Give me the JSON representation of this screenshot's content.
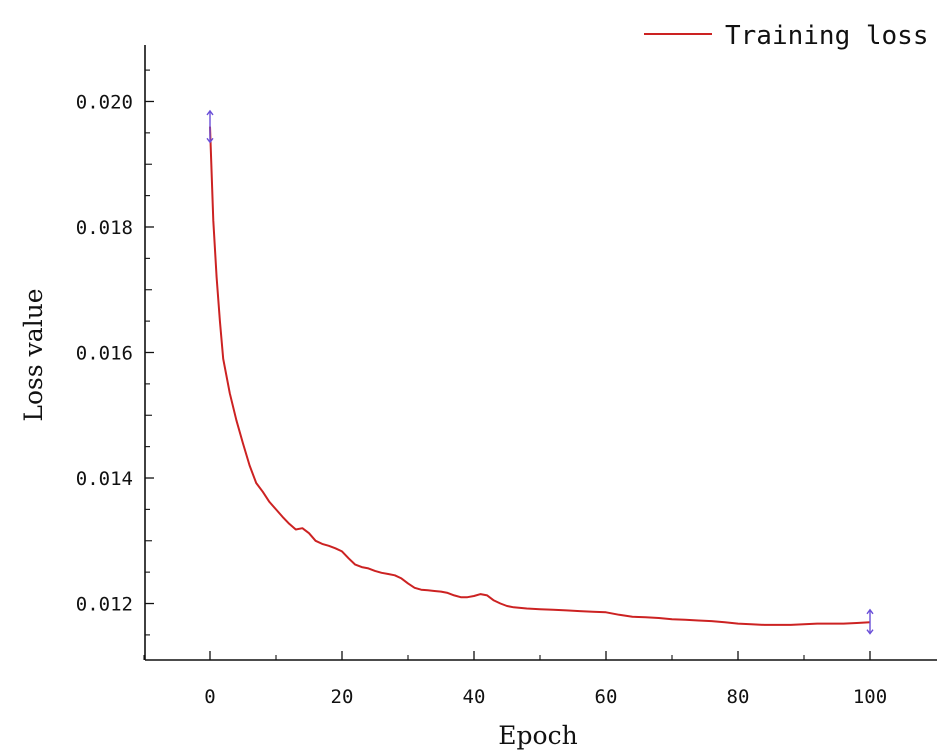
{
  "chart_data": {
    "type": "line",
    "xlabel": "Epoch",
    "ylabel": "Loss value",
    "xlim": [
      -10,
      100
    ],
    "ylim": [
      0.0111,
      0.0209
    ],
    "x_ticks": [
      0,
      20,
      40,
      60,
      80,
      100
    ],
    "x_tick_labels": [
      "0",
      "20",
      "40",
      "60",
      "80",
      "100"
    ],
    "y_ticks": [
      0.012,
      0.014,
      0.016,
      0.018,
      0.02
    ],
    "y_tick_labels": [
      "0.012",
      "0.014",
      "0.016",
      "0.018",
      "0.020"
    ],
    "grid": false,
    "legend_position": "top-right",
    "series": [
      {
        "name": "Training loss",
        "color": "#cc2222",
        "x": [
          0,
          0.5,
          1,
          1.5,
          2,
          3,
          4,
          5,
          6,
          7,
          8,
          9,
          10,
          11,
          12,
          13,
          14,
          15,
          16,
          17,
          18,
          19,
          20,
          21,
          22,
          23,
          24,
          25,
          26,
          27,
          28,
          29,
          30,
          31,
          32,
          33,
          34,
          35,
          36,
          37,
          38,
          39,
          40,
          41,
          42,
          43,
          44,
          45,
          46,
          47,
          48,
          50,
          52,
          54,
          56,
          58,
          60,
          62,
          64,
          66,
          68,
          70,
          72,
          74,
          76,
          78,
          80,
          82,
          84,
          86,
          88,
          90,
          92,
          94,
          96,
          98,
          100
        ],
        "y": [
          0.0196,
          0.0181,
          0.0172,
          0.0165,
          0.0159,
          0.01535,
          0.01492,
          0.01455,
          0.0142,
          0.01392,
          0.01378,
          0.01362,
          0.0135,
          0.01338,
          0.01327,
          0.01318,
          0.0132,
          0.01312,
          0.013,
          0.01295,
          0.01292,
          0.01288,
          0.01283,
          0.01272,
          0.01262,
          0.01258,
          0.01256,
          0.01252,
          0.01249,
          0.01247,
          0.01245,
          0.0124,
          0.01232,
          0.01225,
          0.01222,
          0.01221,
          0.0122,
          0.01219,
          0.01217,
          0.01213,
          0.0121,
          0.0121,
          0.01212,
          0.01215,
          0.01213,
          0.01205,
          0.012,
          0.01196,
          0.01194,
          0.01193,
          0.01192,
          0.01191,
          0.0119,
          0.01189,
          0.01188,
          0.01187,
          0.01186,
          0.01182,
          0.01179,
          0.01178,
          0.01177,
          0.01175,
          0.01174,
          0.01173,
          0.01172,
          0.0117,
          0.01168,
          0.01167,
          0.01166,
          0.01166,
          0.01166,
          0.01167,
          0.01168,
          0.01168,
          0.01168,
          0.01169,
          0.0117
        ]
      }
    ],
    "errorbar_color": "#6a4fd8",
    "error_bars": [
      {
        "x": 0,
        "low": 0.01935,
        "high": 0.01985
      },
      {
        "x": 100,
        "low": 0.01152,
        "high": 0.0119
      }
    ]
  }
}
